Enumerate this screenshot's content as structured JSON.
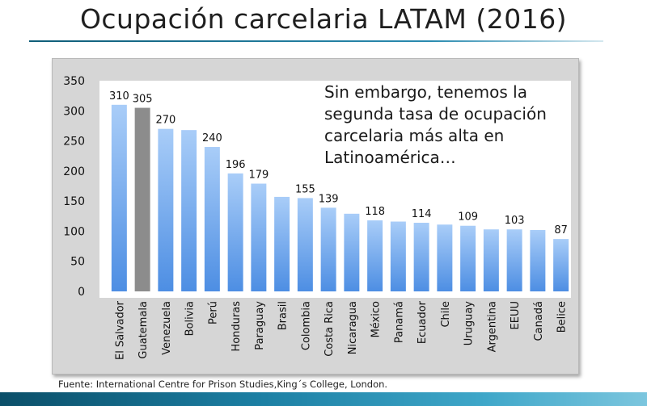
{
  "slide": {
    "title": "Ocupación carcelaria LATAM (2016)",
    "source": "Fuente: International Centre for Prison Studies,King´s College, London."
  },
  "chart_data": {
    "type": "bar",
    "categories": [
      "El Salvador",
      "Guatemala",
      "Venezuela",
      "Bolivia",
      "Perú",
      "Honduras",
      "Paraguay",
      "Brasil",
      "Colombia",
      "Costa Rica",
      "Nicaragua",
      "México",
      "Panamá",
      "Ecuador",
      "Chile",
      "Uruguay",
      "Argentina",
      "EEUU",
      "Canadá",
      "Belice"
    ],
    "values": [
      310,
      305,
      270,
      268,
      240,
      196,
      179,
      157,
      155,
      139,
      129,
      118,
      116,
      114,
      111,
      109,
      103,
      103,
      102,
      87
    ],
    "data_labels": [
      "310",
      "305",
      "270",
      "",
      "240",
      "196",
      "179",
      "",
      "155",
      "139",
      "",
      "118",
      "",
      "114",
      "",
      "109",
      "",
      "103",
      "",
      "87"
    ],
    "highlight": "Guatemala",
    "ylim": [
      0,
      350
    ],
    "yticks": [
      0,
      50,
      100,
      150,
      200,
      250,
      300,
      350
    ],
    "annotation": [
      "Sin embargo, tenemos la",
      "segunda tasa de ocupación",
      "carcelaria más alta en",
      "Latinoamérica…"
    ],
    "colors": {
      "bar_top": "#a9cdf8",
      "bar_bottom": "#4d8ee3",
      "highlight": "#8c8c8c",
      "plot_background": "#ffffff",
      "frame_background": "#d6d6d6"
    },
    "grid": false,
    "legend": "none"
  }
}
